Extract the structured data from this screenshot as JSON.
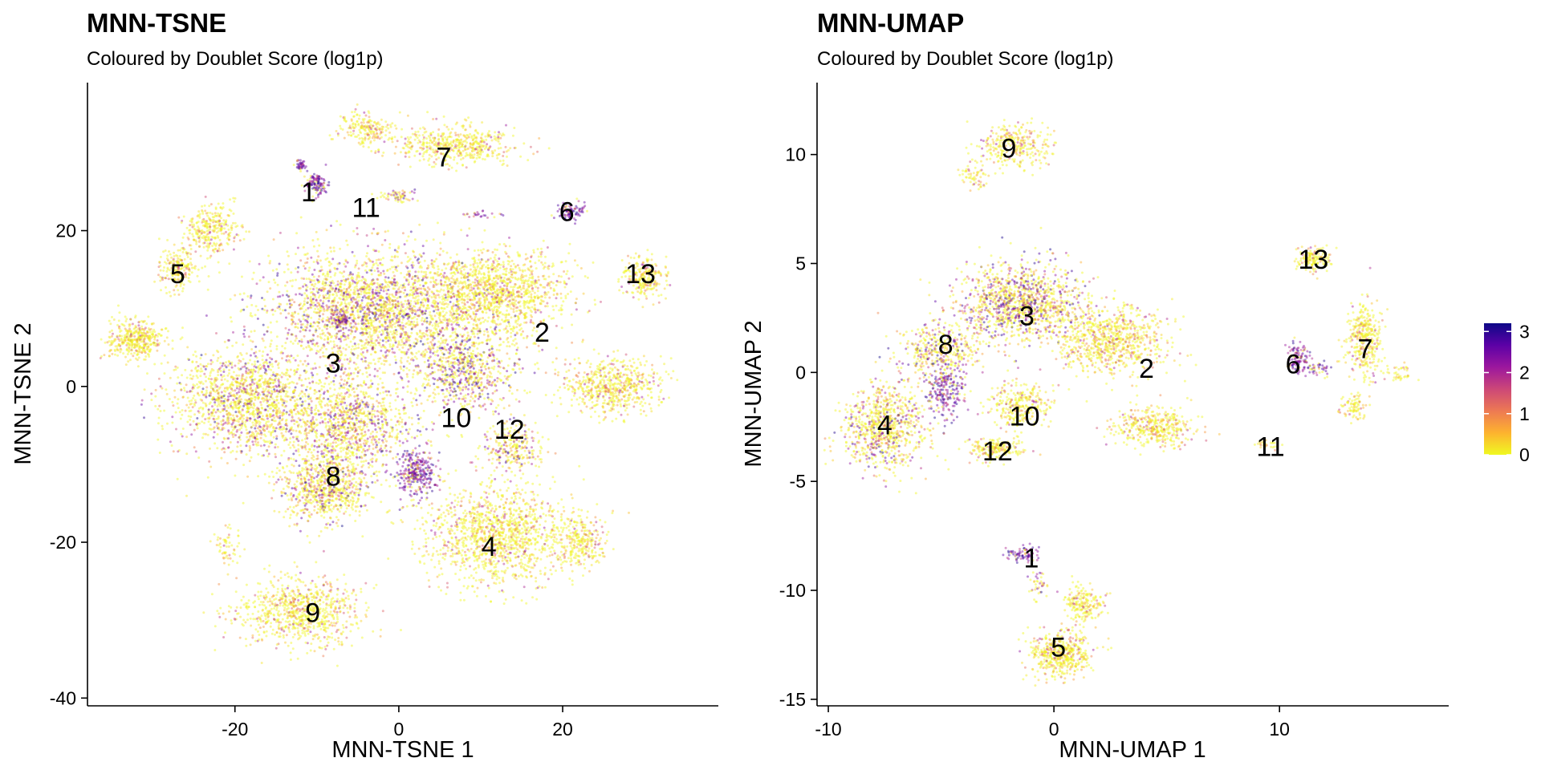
{
  "legend": {
    "ticks": [
      0,
      1,
      2,
      3
    ],
    "colors": [
      "#f0f921",
      "#fdb32f",
      "#ed7953",
      "#cc4778",
      "#9c179e",
      "#5c01a6",
      "#0d0887"
    ],
    "range": [
      0,
      3.2
    ]
  },
  "chart_data": [
    {
      "type": "scatter",
      "title": "MNN-TSNE",
      "subtitle": "Coloured by Doublet Score (log1p)",
      "xlabel": "MNN-TSNE 1",
      "ylabel": "MNN-TSNE 2",
      "xlim": [
        -38,
        39
      ],
      "ylim": [
        -41,
        39
      ],
      "xticks": [
        -20,
        0,
        20
      ],
      "yticks": [
        -40,
        -20,
        0,
        20
      ],
      "grid": false,
      "colour_scale": "Doublet Score (log1p), 0 to 3",
      "clusters": [
        {
          "label": "1",
          "x": -11,
          "y": 25
        },
        {
          "label": "11",
          "x": -4,
          "y": 23
        },
        {
          "label": "7",
          "x": 5.5,
          "y": 29.5
        },
        {
          "label": "6",
          "x": 20.5,
          "y": 22.5
        },
        {
          "label": "5",
          "x": -27,
          "y": 14.5
        },
        {
          "label": "13",
          "x": 29.5,
          "y": 14.5
        },
        {
          "label": "2",
          "x": 17.5,
          "y": 7
        },
        {
          "label": "3",
          "x": -8,
          "y": 3
        },
        {
          "label": "10",
          "x": 7,
          "y": -4
        },
        {
          "label": "12",
          "x": 13.5,
          "y": -5.5
        },
        {
          "label": "8",
          "x": -8,
          "y": -11.5
        },
        {
          "label": "4",
          "x": 11,
          "y": -20.5
        },
        {
          "label": "9",
          "x": -10.5,
          "y": -29
        }
      ]
    },
    {
      "type": "scatter",
      "title": "MNN-UMAP",
      "subtitle": "Coloured by Doublet Score (log1p)",
      "xlabel": "MNN-UMAP 1",
      "ylabel": "MNN-UMAP 2",
      "xlim": [
        -10.5,
        17.5
      ],
      "ylim": [
        -15.3,
        13.3
      ],
      "xticks": [
        -10,
        0,
        10
      ],
      "yticks": [
        -15,
        -10,
        -5,
        0,
        5,
        10
      ],
      "grid": false,
      "colour_scale": "Doublet Score (log1p), 0 to 3",
      "clusters": [
        {
          "label": "9",
          "x": -2,
          "y": 10.3
        },
        {
          "label": "13",
          "x": 11.5,
          "y": 5.2
        },
        {
          "label": "3",
          "x": -1.2,
          "y": 2.6
        },
        {
          "label": "8",
          "x": -4.8,
          "y": 1.3
        },
        {
          "label": "7",
          "x": 13.8,
          "y": 1.1
        },
        {
          "label": "2",
          "x": 4.1,
          "y": 0.2
        },
        {
          "label": "6",
          "x": 10.6,
          "y": 0.4
        },
        {
          "label": "10",
          "x": -1.3,
          "y": -2
        },
        {
          "label": "4",
          "x": -7.5,
          "y": -2.4
        },
        {
          "label": "12",
          "x": -2.5,
          "y": -3.6
        },
        {
          "label": "11",
          "x": 9.6,
          "y": -3.4
        },
        {
          "label": "1",
          "x": -1,
          "y": -8.5
        },
        {
          "label": "5",
          "x": 0.2,
          "y": -12.6
        }
      ]
    }
  ]
}
